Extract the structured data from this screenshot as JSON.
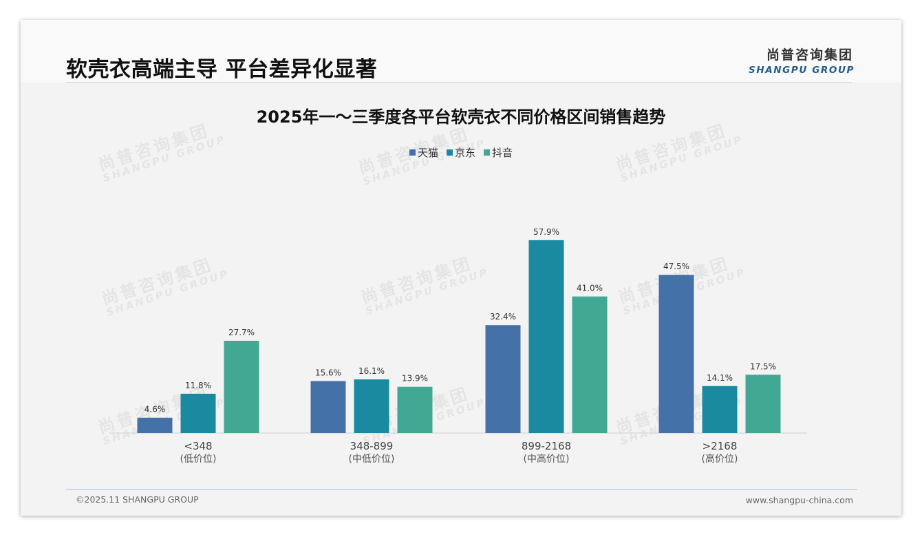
{
  "header": {
    "title": "软壳衣高端主导 平台差异化显著",
    "logo_cn": "尚普咨询集团",
    "logo_en": "SHANGPU GROUP"
  },
  "watermark": {
    "cn": "尚普咨询集团",
    "en": "SHANGPU GROUP"
  },
  "chart_data": {
    "type": "bar",
    "title": "2025年一～三季度各平台软壳衣不同价格区间销售趋势",
    "categories": [
      "<348",
      "348-899",
      "899-2168",
      ">2168"
    ],
    "category_sublabels": [
      "(低价位)",
      "(中低价位)",
      "(中高价位)",
      "(高价位)"
    ],
    "series": [
      {
        "name": "天猫",
        "values": [
          4.6,
          15.6,
          32.4,
          47.5
        ],
        "color": "#4472a8"
      },
      {
        "name": "京东",
        "values": [
          11.8,
          16.1,
          57.9,
          14.1
        ],
        "color": "#1a8aa1"
      },
      {
        "name": "抖音",
        "values": [
          27.7,
          13.9,
          41.0,
          17.5
        ],
        "color": "#41a893"
      }
    ],
    "value_suffix": "%",
    "legend_position": "top-center",
    "grid": false,
    "ylim": [
      0,
      62
    ]
  },
  "footer": {
    "copyright": "©2025.11 SHANGPU GROUP",
    "website": "www.shangpu-china.com"
  }
}
